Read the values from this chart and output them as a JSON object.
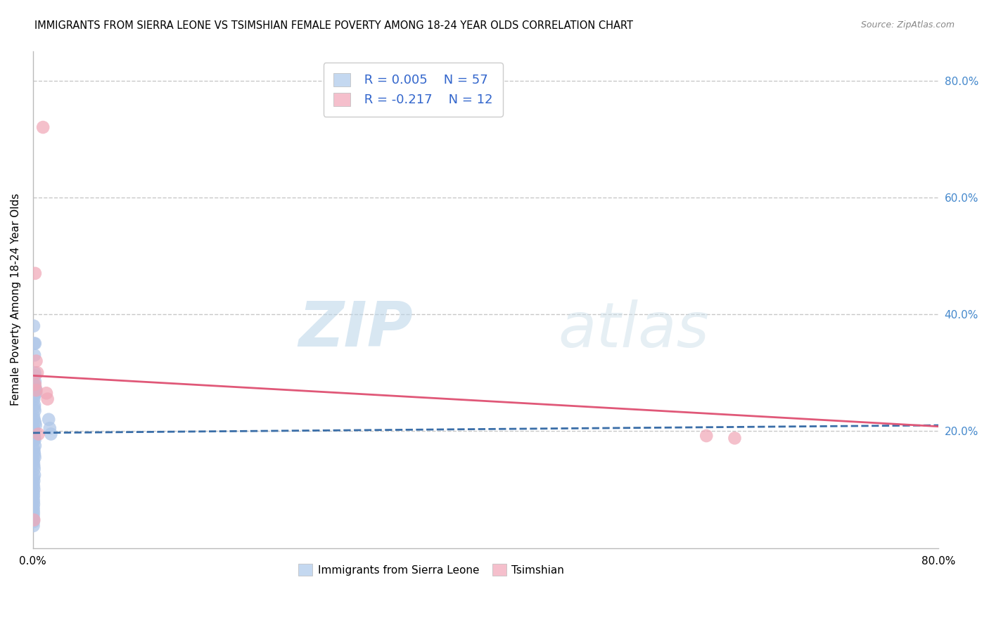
{
  "title": "IMMIGRANTS FROM SIERRA LEONE VS TSIMSHIAN FEMALE POVERTY AMONG 18-24 YEAR OLDS CORRELATION CHART",
  "source": "Source: ZipAtlas.com",
  "ylabel": "Female Poverty Among 18-24 Year Olds",
  "xlim": [
    0,
    0.8
  ],
  "ylim": [
    0,
    0.85
  ],
  "y_ticks_right": [
    0.2,
    0.4,
    0.6,
    0.8
  ],
  "y_tick_labels_right": [
    "20.0%",
    "40.0%",
    "60.0%",
    "80.0%"
  ],
  "blue_fill": "#aec6e8",
  "pink_fill": "#f0a8b8",
  "blue_line_color": "#3a6ea8",
  "pink_line_color": "#e05878",
  "watermark_zip": "ZIP",
  "watermark_atlas": "atlas",
  "background_color": "#ffffff",
  "grid_color": "#c8c8c8",
  "blue_scatter_x": [
    0.0008,
    0.0012,
    0.0015,
    0.0018,
    0.002,
    0.0022,
    0.0025,
    0.0028,
    0.001,
    0.0015,
    0.0018,
    0.0008,
    0.0012,
    0.002,
    0.0025,
    0.0005,
    0.0008,
    0.001,
    0.0015,
    0.0018,
    0.002,
    0.0008,
    0.0012,
    0.0015,
    0.0018,
    0.0005,
    0.0008,
    0.001,
    0.0012,
    0.0015,
    0.0008,
    0.001,
    0.0005,
    0.0008,
    0.001,
    0.0005,
    0.0007,
    0.0005,
    0.0007,
    0.0008,
    0.0005,
    0.0006,
    0.0007,
    0.0005,
    0.0006,
    0.0007,
    0.0005,
    0.014,
    0.015,
    0.016,
    0.002,
    0.0018,
    0.001,
    0.0012,
    0.0015,
    0.0005,
    0.0008
  ],
  "blue_scatter_y": [
    0.38,
    0.35,
    0.33,
    0.295,
    0.285,
    0.275,
    0.27,
    0.265,
    0.255,
    0.245,
    0.235,
    0.225,
    0.22,
    0.215,
    0.21,
    0.205,
    0.2,
    0.195,
    0.19,
    0.185,
    0.175,
    0.17,
    0.165,
    0.16,
    0.155,
    0.15,
    0.145,
    0.14,
    0.135,
    0.125,
    0.12,
    0.115,
    0.11,
    0.105,
    0.1,
    0.095,
    0.09,
    0.085,
    0.08,
    0.075,
    0.07,
    0.065,
    0.06,
    0.055,
    0.05,
    0.045,
    0.038,
    0.22,
    0.205,
    0.195,
    0.35,
    0.3,
    0.28,
    0.26,
    0.24,
    0.195,
    0.185
  ],
  "pink_scatter_x": [
    0.009,
    0.002,
    0.003,
    0.004,
    0.002,
    0.003,
    0.012,
    0.013,
    0.595,
    0.62,
    0.005,
    0.001
  ],
  "pink_scatter_y": [
    0.72,
    0.47,
    0.32,
    0.3,
    0.28,
    0.27,
    0.265,
    0.255,
    0.192,
    0.188,
    0.195,
    0.048
  ],
  "blue_trend_x0": 0.0,
  "blue_trend_x1": 0.8,
  "blue_trend_y0": 0.197,
  "blue_trend_y1": 0.21,
  "pink_trend_x0": 0.0,
  "pink_trend_x1": 0.8,
  "pink_trend_y0": 0.295,
  "pink_trend_y1": 0.208
}
